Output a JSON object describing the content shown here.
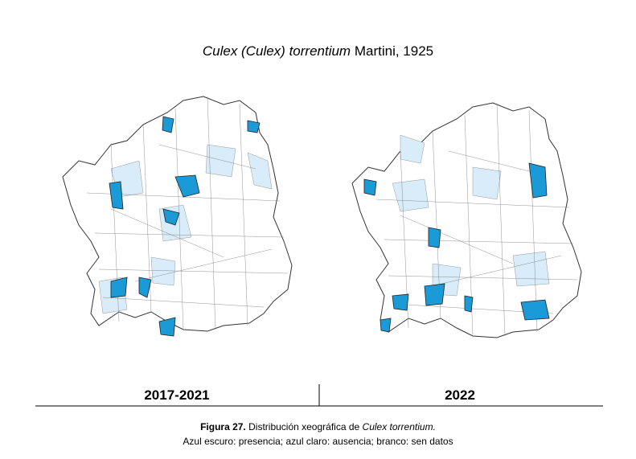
{
  "title": {
    "species": "Culex (Culex) torrentium",
    "author": "Martini, 1925"
  },
  "panels": [
    {
      "label": "2017-2021"
    },
    {
      "label": "2022"
    }
  ],
  "caption": {
    "figure": "Figura 27.",
    "text": "Distribución xeográfica de",
    "species": "Culex torrentium.",
    "legend": "Azul escuro: presencia; azul claro: ausencia; branco: sen datos"
  }
}
